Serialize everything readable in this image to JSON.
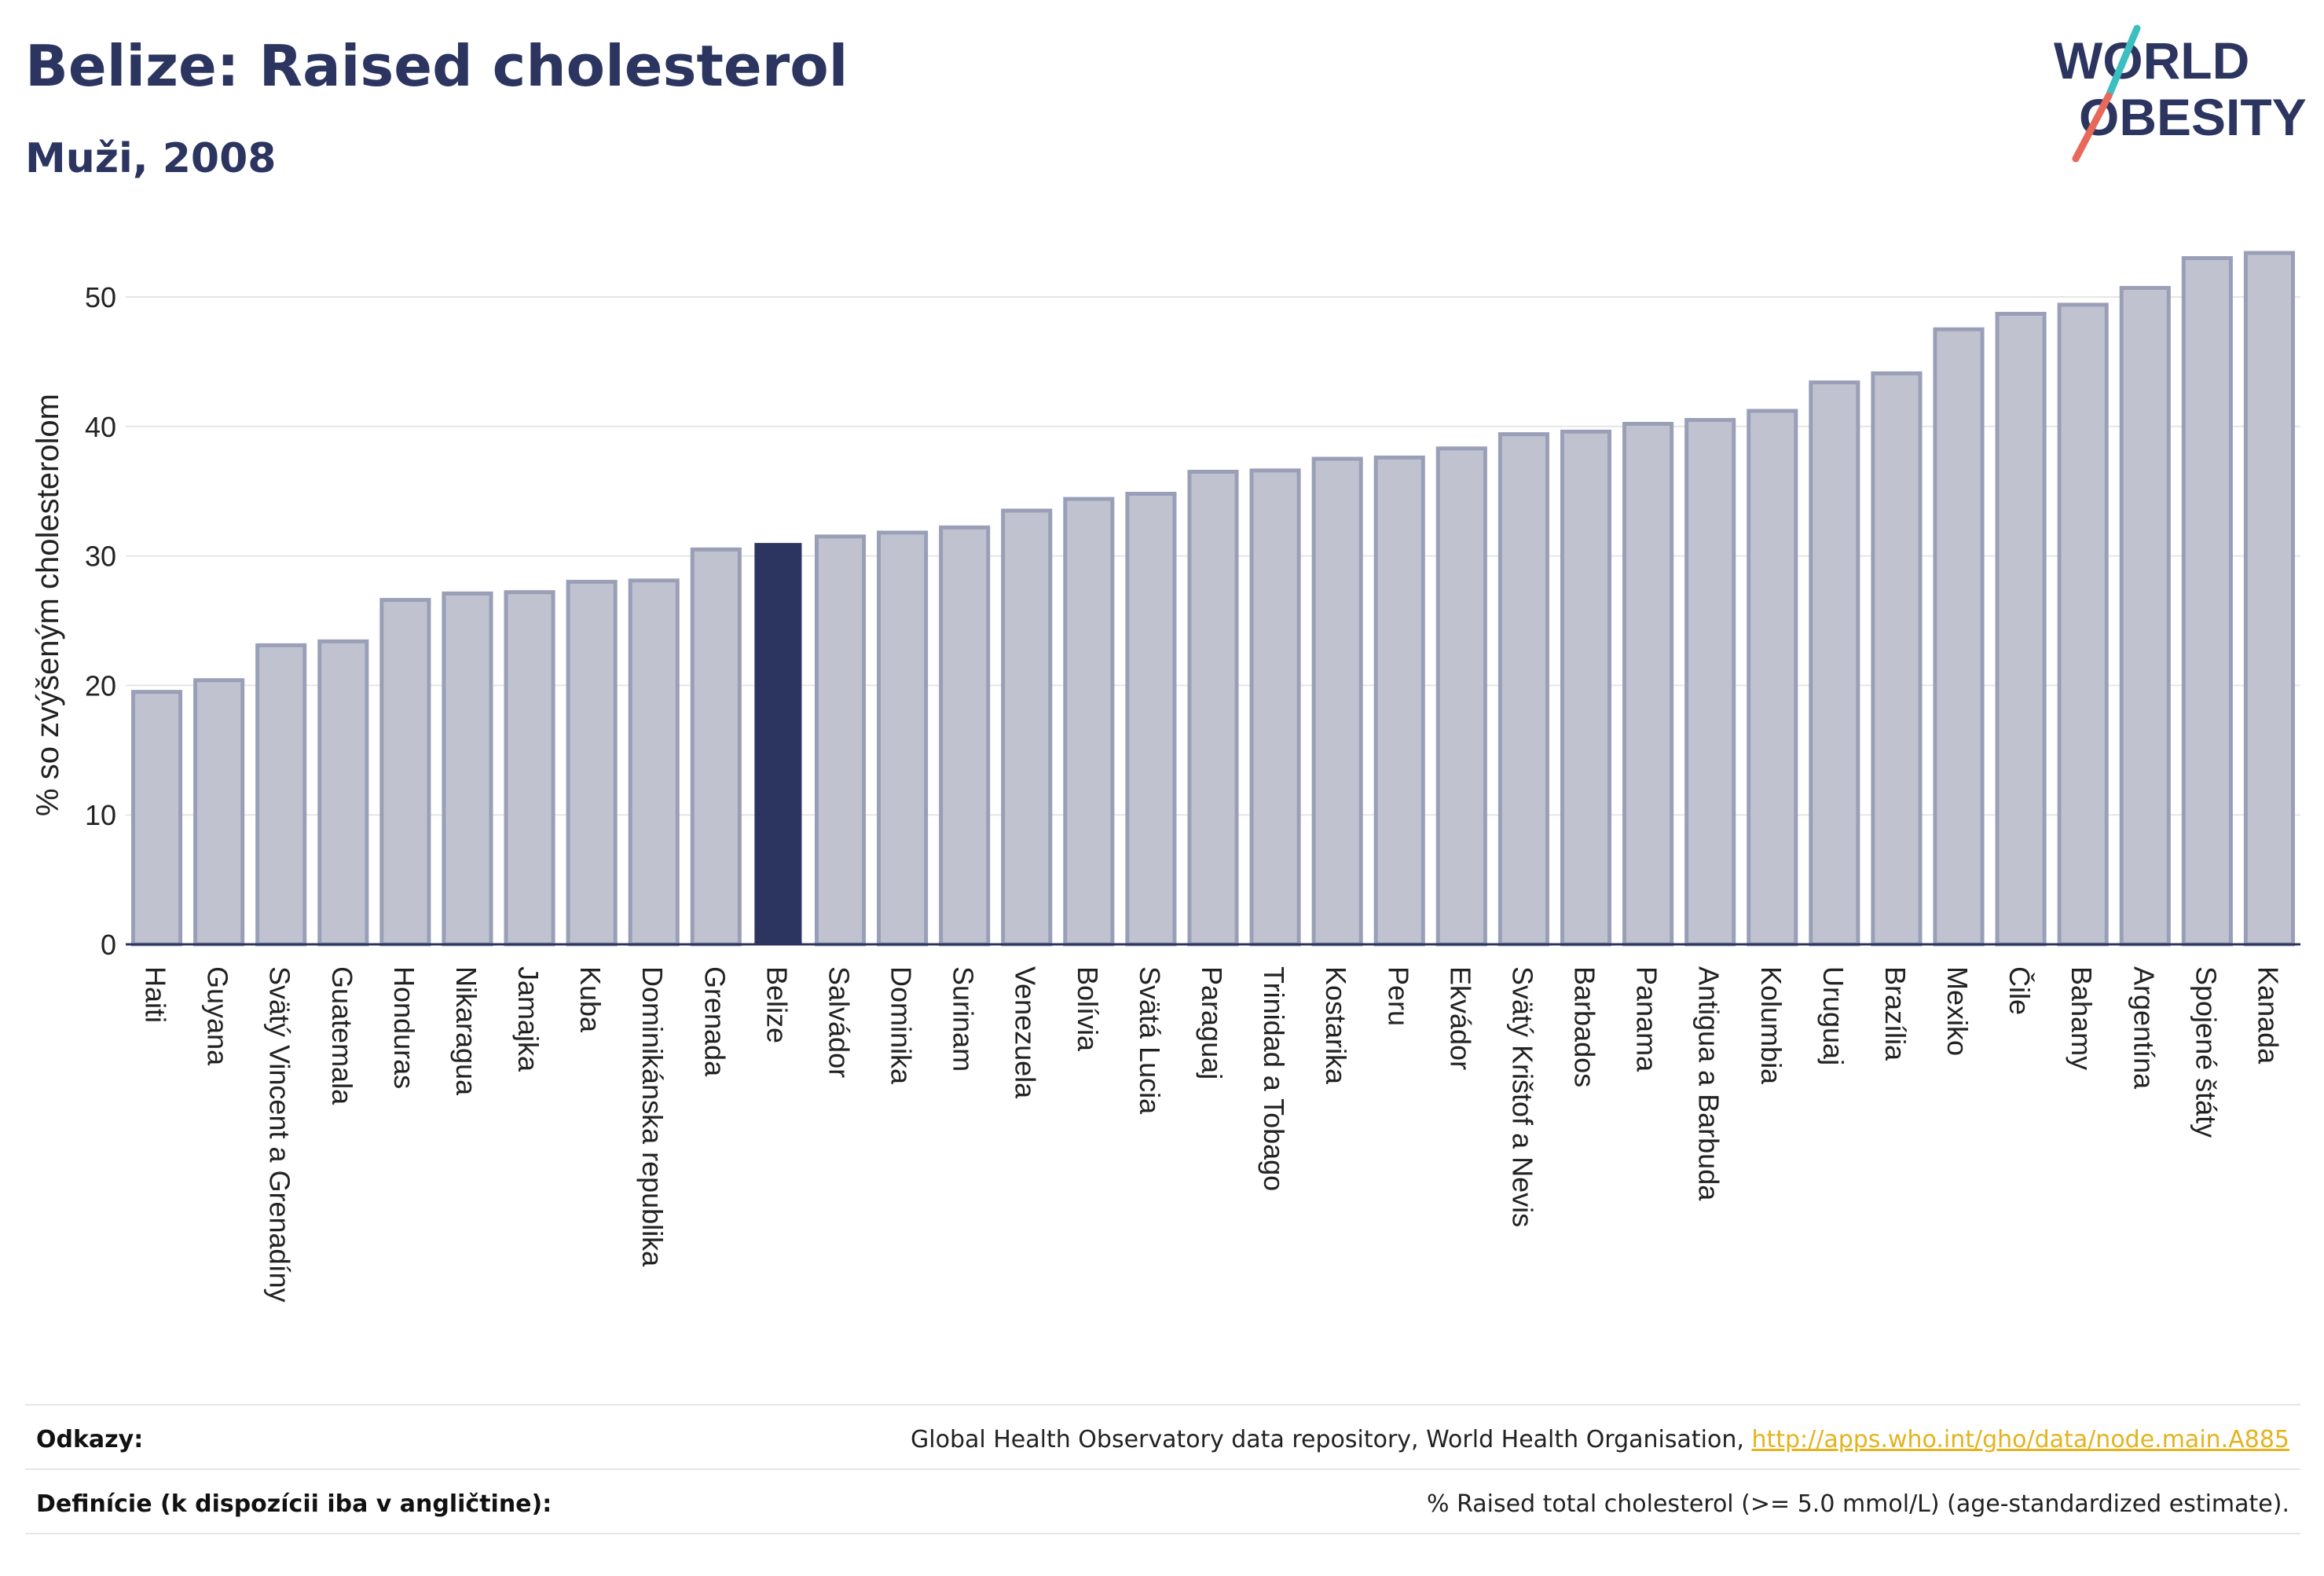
{
  "header": {
    "title": "Belize: Raised cholesterol",
    "subtitle": "Muži, 2008",
    "logo_line1": "WORLD",
    "logo_line2": "OBESITY"
  },
  "footer": {
    "references_label": "Odkazy:",
    "references_text": "Global Health Observatory data repository, World Health Organisation, ",
    "references_link": "http://apps.who.int/gho/data/node.main.A885",
    "definitions_label": "Definície (k dispozícii iba v angličtine):",
    "definitions_text": "% Raised total cholesterol (>= 5.0 mmol/L) (age-standardized estimate)."
  },
  "colors": {
    "bar": "#c0c3cf",
    "bar_border": "#9a9fb8",
    "highlight": "#2b3560",
    "title": "#2b3560",
    "link": "#e3b31e",
    "logo_slash_teal": "#3bbfc0",
    "logo_slash_red": "#e8685a"
  },
  "chart_data": {
    "type": "bar",
    "title": "Belize: Raised cholesterol",
    "subtitle": "Muži, 2008",
    "xlabel": "",
    "ylabel": "% so zvýšeným cholesterolom",
    "ylim": [
      0,
      55
    ],
    "yticks": [
      0,
      10,
      20,
      30,
      40,
      50
    ],
    "grid": true,
    "highlight": "Belize",
    "categories": [
      "Haiti",
      "Guyana",
      "Svätý Vincent a Grenadíny",
      "Guatemala",
      "Honduras",
      "Nikaragua",
      "Jamajka",
      "Kuba",
      "Dominikánska republika",
      "Grenada",
      "Belize",
      "Salvádor",
      "Dominika",
      "Surinam",
      "Venezuela",
      "Bolívia",
      "Svätá Lucia",
      "Paraguaj",
      "Trinidad a Tobago",
      "Kostarika",
      "Peru",
      "Ekvádor",
      "Svätý Krištof a Nevis",
      "Barbados",
      "Panama",
      "Antigua a Barbuda",
      "Kolumbia",
      "Uruguaj",
      "Brazília",
      "Mexiko",
      "Čile",
      "Bahamy",
      "Argentína",
      "Spojené štáty",
      "Kanada"
    ],
    "values": [
      19.5,
      20.4,
      23.1,
      23.4,
      26.6,
      27.1,
      27.2,
      28.0,
      28.1,
      30.5,
      31.0,
      31.5,
      31.8,
      32.2,
      33.5,
      34.4,
      34.8,
      36.5,
      36.6,
      37.5,
      37.6,
      38.3,
      39.4,
      39.6,
      40.2,
      40.5,
      41.2,
      43.4,
      44.1,
      47.5,
      48.7,
      49.4,
      50.7,
      53.0,
      53.4
    ]
  }
}
